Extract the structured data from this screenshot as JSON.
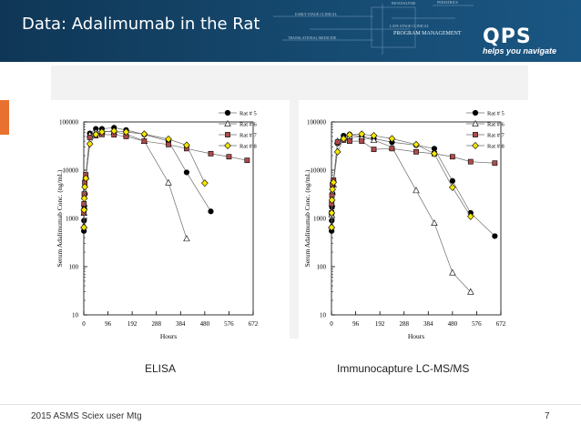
{
  "slide": {
    "title": "Data: Adalimumab in the Rat",
    "footer": "2015 ASMS Sciex user Mtg",
    "page_number": "7"
  },
  "logo": {
    "name": "QPS",
    "tagline": "helps you navigate",
    "header_words": [
      "BIOANALYSIS",
      "EARLY STAGE CLINICAL",
      "LATE STAGE CLINICAL",
      "TRANSLATIONAL MEDICINE",
      "PROGRAM MANAGEMENT",
      "PEDIATRICS"
    ]
  },
  "captions": {
    "left": "ELISA",
    "right": "Immunocapture LC-MS/MS"
  },
  "colors": {
    "header_bg": "#164a70",
    "accent": "#e9712f",
    "rat5": "#000000",
    "rat6": "#ffffff",
    "rat7": "#b04a4a",
    "rat8": "#f5e600"
  },
  "chart_data": [
    {
      "type": "scatter",
      "title": "",
      "xlabel": "Hours",
      "ylabel": "Serum Adalimumab Conc. (ng/mL)",
      "xlim": [
        0,
        672
      ],
      "ylim": [
        10,
        100000
      ],
      "yscale": "log",
      "xticks": [
        "0",
        "96",
        "192",
        "288",
        "384",
        "480",
        "576",
        "672"
      ],
      "yticks": [
        "10",
        "100",
        "1000",
        "10000",
        "100000"
      ],
      "legend_position": "top-right",
      "series": [
        {
          "name": "Rat # 5",
          "marker": "circle",
          "x": [
            0.5,
            1,
            2,
            4,
            8,
            24,
            48,
            72,
            120,
            168,
            240,
            336,
            408,
            504
          ],
          "y": [
            550,
            900,
            1600,
            3200,
            7000,
            58000,
            72000,
            72000,
            76000,
            68000,
            55000,
            40000,
            9000,
            1400
          ]
        },
        {
          "name": "Rat # 6",
          "marker": "triangle",
          "x": [
            0.5,
            1,
            2,
            4,
            8,
            24,
            48,
            72,
            120,
            168,
            240,
            336,
            408
          ],
          "y": [
            700,
            1300,
            2000,
            3600,
            7200,
            54000,
            62000,
            64000,
            62000,
            56000,
            40000,
            5500,
            380
          ]
        },
        {
          "name": "Rat # 7",
          "marker": "square",
          "x": [
            0.5,
            1,
            2,
            4,
            8,
            24,
            48,
            72,
            120,
            168,
            240,
            336,
            408,
            504,
            576,
            648
          ],
          "y": [
            1300,
            2000,
            3200,
            5500,
            8000,
            48000,
            52000,
            55000,
            54000,
            50000,
            40000,
            34000,
            28000,
            22000,
            19000,
            16000
          ]
        },
        {
          "name": "Rat # 8",
          "marker": "diamond",
          "x": [
            0.5,
            1,
            2,
            4,
            8,
            24,
            48,
            72,
            120,
            168,
            240,
            336,
            408,
            480
          ],
          "y": [
            650,
            1500,
            2600,
            4500,
            6800,
            35000,
            55000,
            62000,
            65000,
            62000,
            56000,
            44000,
            33000,
            5400
          ]
        }
      ]
    },
    {
      "type": "scatter",
      "title": "",
      "xlabel": "Hours",
      "ylabel": "Serum Adalimumab Conc. (ng/mL)",
      "xlim": [
        0,
        672
      ],
      "ylim": [
        10,
        100000
      ],
      "yscale": "log",
      "xticks": [
        "0",
        "96",
        "192",
        "288",
        "384",
        "480",
        "576",
        "672"
      ],
      "yticks": [
        "10",
        "100",
        "1000",
        "10000",
        "100000"
      ],
      "legend_position": "top-right",
      "series": [
        {
          "name": "Rat # 5",
          "marker": "circle",
          "x": [
            0.5,
            1,
            2,
            4,
            8,
            24,
            48,
            72,
            120,
            168,
            240,
            336,
            408,
            480,
            552,
            648
          ],
          "y": [
            550,
            900,
            1700,
            3300,
            6000,
            36000,
            52000,
            55000,
            50000,
            45000,
            38000,
            33000,
            28000,
            6000,
            1300,
            430
          ]
        },
        {
          "name": "Rat # 6",
          "marker": "triangle",
          "x": [
            0.5,
            1,
            2,
            4,
            8,
            24,
            48,
            72,
            120,
            168,
            240,
            336,
            408,
            480,
            552
          ],
          "y": [
            700,
            1200,
            2000,
            3500,
            5000,
            40000,
            48000,
            50000,
            48000,
            42000,
            30000,
            3800,
            800,
            75,
            30
          ]
        },
        {
          "name": "Rat # 7",
          "marker": "square",
          "x": [
            0.5,
            1,
            2,
            4,
            8,
            24,
            48,
            72,
            120,
            168,
            240,
            336,
            408,
            480,
            552,
            648
          ],
          "y": [
            1300,
            2000,
            3000,
            5000,
            6200,
            38000,
            42000,
            40000,
            40000,
            27000,
            28000,
            24000,
            22000,
            19000,
            15000,
            14000
          ]
        },
        {
          "name": "Rat # 8",
          "marker": "diamond",
          "x": [
            0.5,
            1,
            2,
            4,
            8,
            24,
            48,
            72,
            120,
            168,
            240,
            336,
            408,
            480,
            552
          ],
          "y": [
            650,
            1300,
            2400,
            4000,
            5600,
            24000,
            45000,
            54000,
            56000,
            52000,
            45000,
            34000,
            22000,
            4400,
            1100
          ]
        }
      ]
    }
  ]
}
